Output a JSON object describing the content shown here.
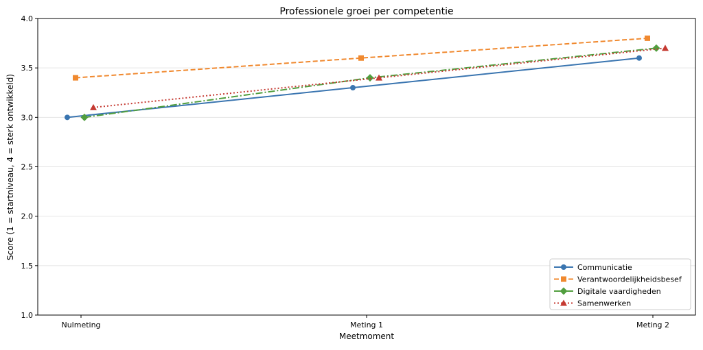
{
  "chart_data": {
    "type": "line",
    "title": "Professionele groei per competentie",
    "xlabel": "Meetmoment",
    "ylabel": "Score (1 = startniveau, 4 = sterk ontwikkeld)",
    "categories": [
      "Nulmeting",
      "Meting 1",
      "Meting 2"
    ],
    "ylim": [
      1.0,
      4.0
    ],
    "yticks": [
      "1.0",
      "1.5",
      "2.0",
      "2.5",
      "3.0",
      "3.5",
      "4.0"
    ],
    "grid": "horizontal",
    "legend_position": "bottom-right",
    "series": [
      {
        "name": "Communicatie",
        "values": [
          3.0,
          3.3,
          3.6
        ],
        "color": "#3a75b0",
        "dash": "solid",
        "marker": "circle"
      },
      {
        "name": "Verantwoordelijkheidsbesef",
        "values": [
          3.4,
          3.6,
          3.8
        ],
        "color": "#f0892f",
        "dash": "dashed",
        "marker": "square"
      },
      {
        "name": "Digitale vaardigheden",
        "values": [
          3.0,
          3.4,
          3.7
        ],
        "color": "#519e3e",
        "dash": "dashdot",
        "marker": "diamond"
      },
      {
        "name": "Samenwerken",
        "values": [
          3.1,
          3.4,
          3.7
        ],
        "color": "#c53a32",
        "dash": "dotted",
        "marker": "triangle"
      }
    ]
  }
}
